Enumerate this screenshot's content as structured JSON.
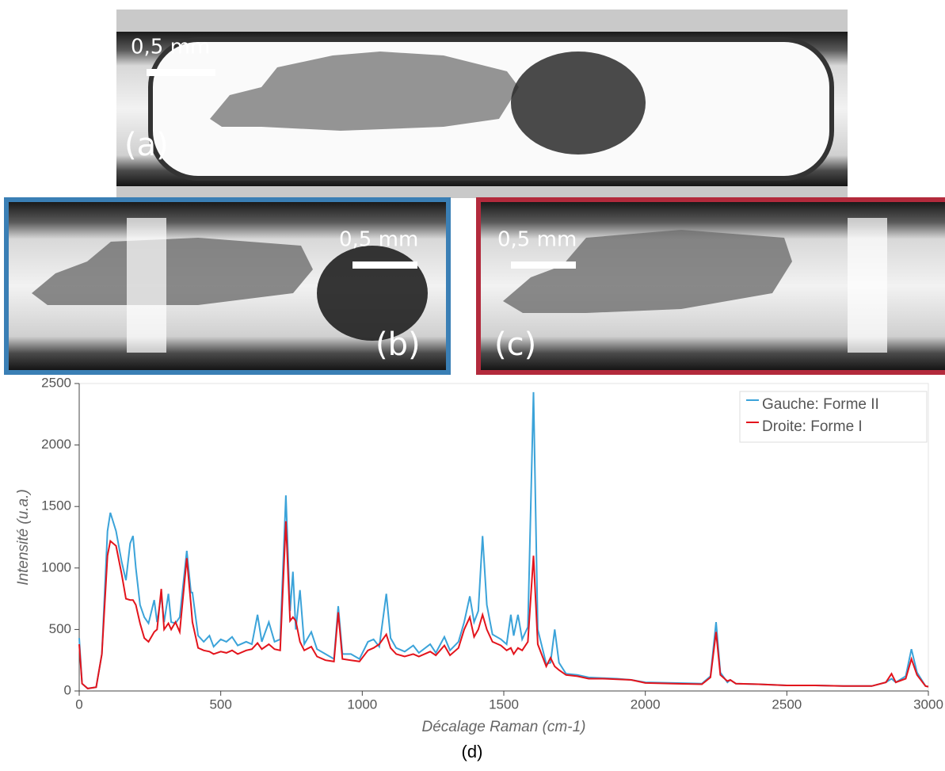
{
  "panels": [
    {
      "label": "(a)",
      "scale": "0,5 mm"
    },
    {
      "label": "(b)",
      "scale": "0,5 mm"
    },
    {
      "label": "(c)",
      "scale": "0,5 mm"
    }
  ],
  "chart_data": {
    "type": "line",
    "caption": "(d)",
    "x_label": "Décalage Raman (cm-1)",
    "y_label": "Intensité (u.a.)",
    "x": [
      0,
      10,
      30,
      60,
      80,
      100,
      110,
      130,
      150,
      165,
      180,
      190,
      200,
      215,
      230,
      245,
      265,
      275,
      290,
      300,
      315,
      325,
      340,
      355,
      380,
      395,
      400,
      420,
      440,
      460,
      475,
      500,
      520,
      540,
      560,
      590,
      610,
      630,
      645,
      670,
      690,
      710,
      730,
      745,
      755,
      765,
      780,
      795,
      820,
      840,
      870,
      900,
      915,
      930,
      960,
      990,
      1020,
      1040,
      1060,
      1085,
      1100,
      1120,
      1150,
      1180,
      1200,
      1240,
      1260,
      1290,
      1310,
      1340,
      1360,
      1380,
      1395,
      1410,
      1425,
      1440,
      1460,
      1490,
      1510,
      1525,
      1535,
      1550,
      1565,
      1585,
      1605,
      1620,
      1650,
      1665,
      1680,
      1695,
      1720,
      1760,
      1800,
      1850,
      1900,
      1950,
      2000,
      2100,
      2200,
      2230,
      2250,
      2265,
      2290,
      2300,
      2320,
      2400,
      2500,
      2600,
      2700,
      2800,
      2850,
      2870,
      2885,
      2920,
      2940,
      2960,
      2990,
      3000
    ],
    "series": [
      {
        "name": "Gauche: Forme II",
        "color": "#3ba3d9",
        "values": [
          430,
          60,
          20,
          30,
          300,
          1300,
          1450,
          1300,
          1050,
          900,
          1200,
          1260,
          1000,
          700,
          600,
          550,
          740,
          560,
          780,
          560,
          790,
          560,
          550,
          600,
          1140,
          800,
          800,
          450,
          400,
          450,
          360,
          420,
          400,
          440,
          370,
          400,
          380,
          620,
          400,
          560,
          400,
          420,
          1590,
          650,
          970,
          500,
          820,
          380,
          480,
          340,
          300,
          260,
          690,
          300,
          300,
          260,
          400,
          420,
          360,
          790,
          430,
          350,
          320,
          370,
          310,
          380,
          310,
          440,
          330,
          400,
          560,
          770,
          560,
          650,
          1260,
          700,
          460,
          420,
          380,
          620,
          450,
          620,
          420,
          520,
          2430,
          500,
          220,
          230,
          500,
          230,
          140,
          130,
          110,
          105,
          100,
          90,
          70,
          65,
          60,
          120,
          560,
          150,
          70,
          90,
          60,
          55,
          45,
          45,
          40,
          40,
          70,
          100,
          70,
          120,
          340,
          150,
          40,
          35
        ]
      },
      {
        "name": "Droite: Forme I",
        "color": "#e3141c",
        "values": [
          380,
          60,
          20,
          30,
          300,
          1100,
          1220,
          1180,
          950,
          750,
          740,
          740,
          700,
          550,
          430,
          400,
          480,
          500,
          830,
          500,
          550,
          500,
          560,
          480,
          1080,
          700,
          560,
          350,
          330,
          320,
          300,
          320,
          310,
          330,
          300,
          330,
          340,
          390,
          340,
          380,
          340,
          330,
          1380,
          570,
          600,
          570,
          400,
          330,
          360,
          280,
          250,
          240,
          640,
          260,
          250,
          240,
          330,
          350,
          380,
          460,
          350,
          300,
          280,
          300,
          280,
          320,
          290,
          370,
          290,
          350,
          500,
          600,
          440,
          500,
          620,
          500,
          400,
          370,
          330,
          350,
          300,
          350,
          330,
          400,
          1100,
          380,
          200,
          270,
          200,
          170,
          130,
          120,
          100,
          100,
          95,
          90,
          65,
          60,
          55,
          110,
          480,
          130,
          80,
          90,
          60,
          55,
          45,
          45,
          40,
          40,
          70,
          140,
          70,
          100,
          260,
          130,
          40,
          35
        ]
      }
    ],
    "xlim": [
      0,
      3000
    ],
    "xticks": [
      0,
      500,
      1000,
      1500,
      2000,
      2500,
      3000
    ],
    "ylim": [
      0,
      2500
    ],
    "yticks": [
      0,
      500,
      1000,
      1500,
      2000,
      2500
    ],
    "grid": false,
    "legend": "top-right"
  }
}
